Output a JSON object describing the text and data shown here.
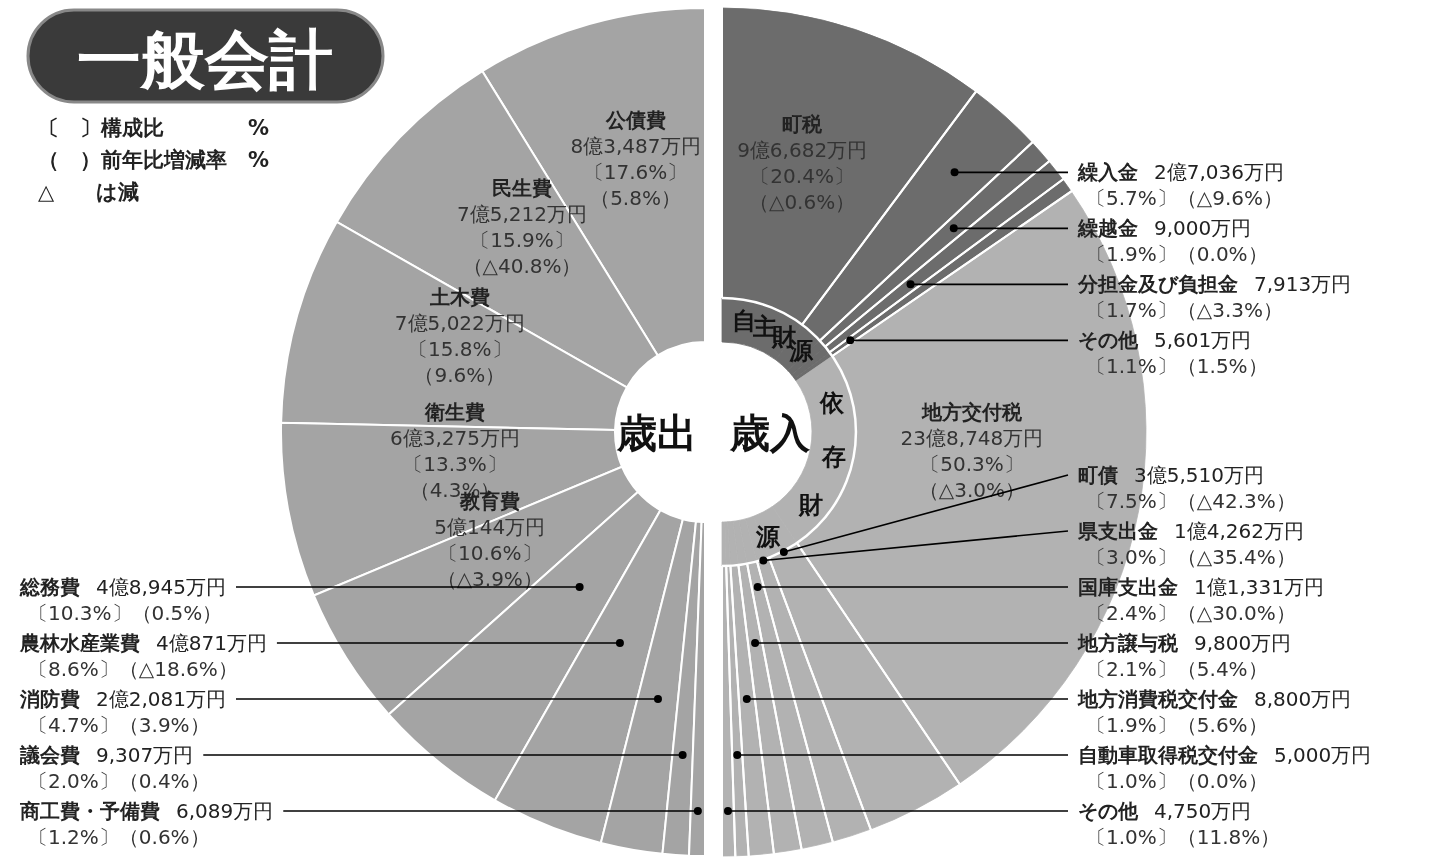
{
  "chart_data": [
    {
      "type": "donut",
      "title": "歳出",
      "annotations": [
        "一般会計",
        "〔　〕構成比　　　　%",
        "（　）前年比増減率　%",
        "△　　は減"
      ],
      "categories": [
        "公債費",
        "民生費",
        "土木費",
        "衛生費",
        "教育費",
        "総務費",
        "農林水産業費",
        "消防費",
        "議会費",
        "商工費・予備費"
      ],
      "values": [
        17.6,
        15.9,
        15.8,
        13.3,
        10.6,
        10.3,
        8.6,
        4.7,
        2.0,
        1.2
      ],
      "colors": [
        "#a4a4a4",
        "#a4a4a4",
        "#a4a4a4",
        "#a4a4a4",
        "#a4a4a4",
        "#a4a4a4",
        "#a4a4a4",
        "#a4a4a4",
        "#a4a4a4",
        "#a4a4a4"
      ],
      "value_labels": [
        "8億3,487万円〔17.6%〕（5.8%）",
        "7億5,212万円〔15.9%〕（△40.8%）",
        "7億5,022万円〔15.8%〕（9.6%）",
        "6億3,275万円〔13.3%〕（4.3%）",
        "5億144万円〔10.6%〕（△3.9%）",
        "4億8,945万円〔10.3%〕（0.5%）",
        "4億871万円〔8.6%〕（△18.6%）",
        "2億2,081万円〔4.7%〕（3.9%）",
        "9,307万円〔2.0%〕（0.4%）",
        "6,089万円〔1.2%〕（0.6%）"
      ]
    },
    {
      "type": "donut",
      "title": "歳入",
      "annotations": [
        "自主財源",
        "依存財源"
      ],
      "categories": [
        "町税",
        "繰入金",
        "繰越金",
        "分担金及び負担金",
        "その他",
        "地方交付税",
        "町債",
        "県支出金",
        "国庫支出金",
        "地方譲与税",
        "地方消費税交付金",
        "自動車取得税交付金",
        "その他"
      ],
      "values": [
        20.4,
        5.7,
        1.9,
        1.7,
        1.1,
        50.3,
        7.5,
        3.0,
        2.4,
        2.1,
        1.9,
        1.0,
        1.0
      ],
      "colors": [
        "#6c6c6c",
        "#6c6c6c",
        "#6c6c6c",
        "#6c6c6c",
        "#6c6c6c",
        "#b2b2b2",
        "#b2b2b2",
        "#b2b2b2",
        "#b2b2b2",
        "#b2b2b2",
        "#b2b2b2",
        "#b2b2b2",
        "#b2b2b2"
      ],
      "value_labels": [
        "9億6,682万円〔20.4%〕（△0.6%）",
        "2億7,036万円〔5.7%〕（△9.6%）",
        "9,000万円〔1.9%〕（0.0%）",
        "7,913万円〔1.7%〕（△3.3%）",
        "5,601万円〔1.1%〕（1.5%）",
        "23億8,748万円〔50.3%〕（△3.0%）",
        "3億5,510万円〔7.5%〕（△42.3%）",
        "1億4,262万円〔3.0%〕（△35.4%）",
        "1億1,331万円〔2.4%〕（△30.0%）",
        "9,800万円〔2.1%〕（5.4%）",
        "8,800万円〔1.9%〕（5.6%）",
        "5,000万円〔1.0%〕（0.0%）",
        "4,750万円〔1.0%〕（11.8%）"
      ]
    }
  ]
}
